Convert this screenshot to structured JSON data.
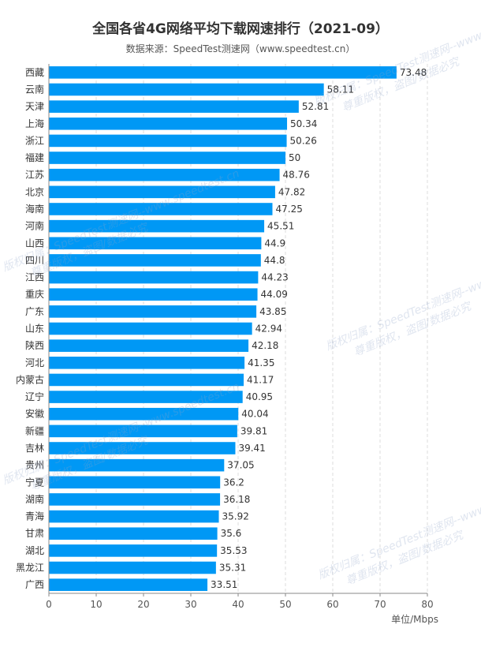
{
  "chart_data": {
    "type": "bar",
    "orientation": "horizontal",
    "title": "全国各省4G网络平均下载网速排行（2021-09）",
    "subtitle": "数据来源：SpeedTest测速网（www.speedtest.cn）",
    "xlabel": "单位/Mbps",
    "ylabel": "",
    "xlim": [
      0,
      80
    ],
    "xticks": [
      0,
      10,
      20,
      30,
      40,
      50,
      60,
      70,
      80
    ],
    "grid": true,
    "bar_color": "#0098f5",
    "categories": [
      "西藏",
      "云南",
      "天津",
      "上海",
      "浙江",
      "福建",
      "江苏",
      "北京",
      "海南",
      "河南",
      "山西",
      "四川",
      "江西",
      "重庆",
      "广东",
      "山东",
      "陕西",
      "河北",
      "内蒙古",
      "辽宁",
      "安徽",
      "新疆",
      "吉林",
      "贵州",
      "宁夏",
      "湖南",
      "青海",
      "甘肃",
      "湖北",
      "黑龙江",
      "广西"
    ],
    "values": [
      73.48,
      58.11,
      52.81,
      50.34,
      50.26,
      50,
      48.76,
      47.82,
      47.25,
      45.51,
      44.9,
      44.8,
      44.23,
      44.09,
      43.85,
      42.94,
      42.18,
      41.35,
      41.17,
      40.95,
      40.04,
      39.81,
      39.41,
      37.05,
      36.2,
      36.18,
      35.92,
      35.6,
      35.53,
      35.31,
      33.51
    ]
  },
  "watermark": {
    "line1": "版权归属：SpeedTest测速网--www.speedtest.cn",
    "line2": "尊重版权，盗图/数据必究"
  }
}
